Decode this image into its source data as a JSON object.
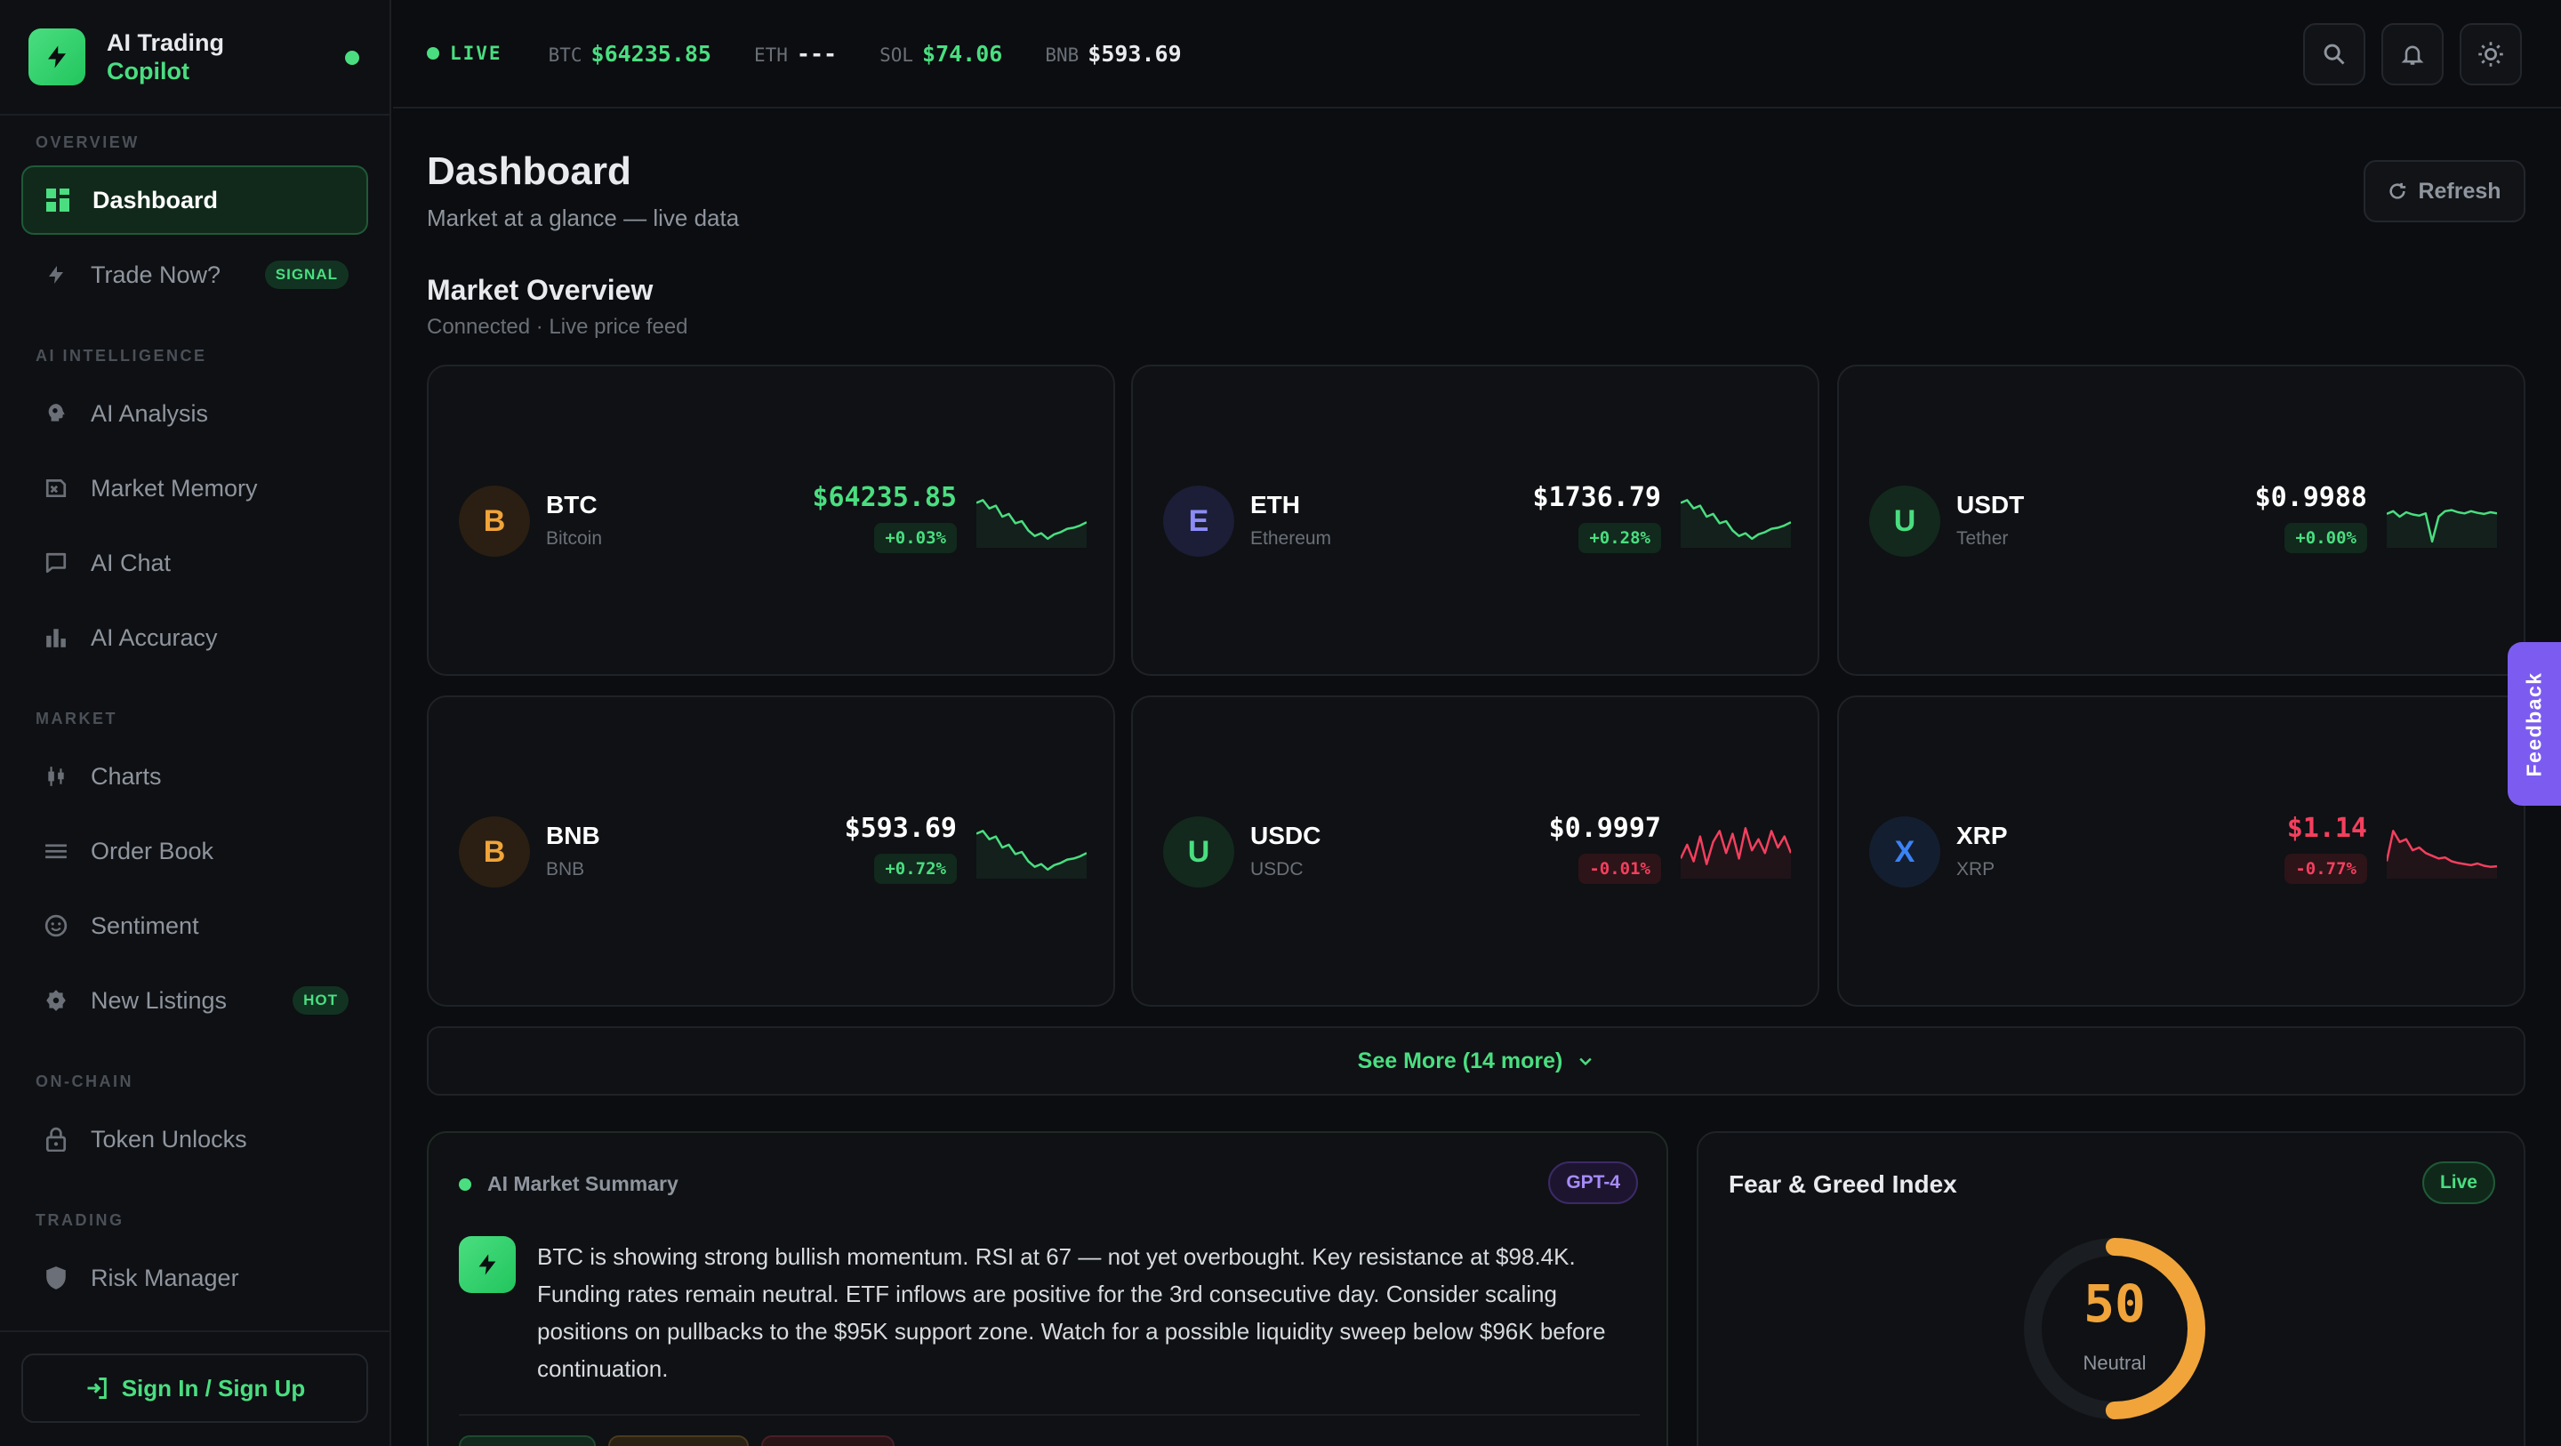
{
  "brand": {
    "line1": "AI Trading",
    "line2": "Copilot"
  },
  "sidebar": {
    "sections": {
      "overview": "OVERVIEW",
      "ai": "AI INTELLIGENCE",
      "market": "MARKET",
      "onchain": "ON-CHAIN",
      "trading": "TRADING"
    },
    "items": [
      {
        "label": "Dashboard",
        "icon": "grid-icon"
      },
      {
        "label": "Trade Now?",
        "icon": "lightning-icon",
        "badge": "SIGNAL"
      },
      {
        "label": "AI Analysis",
        "icon": "brain-icon"
      },
      {
        "label": "Market Memory",
        "icon": "history-icon"
      },
      {
        "label": "AI Chat",
        "icon": "chat-icon"
      },
      {
        "label": "AI Accuracy",
        "icon": "bar-chart-icon"
      },
      {
        "label": "Charts",
        "icon": "candlestick-icon"
      },
      {
        "label": "Order Book",
        "icon": "list-icon"
      },
      {
        "label": "Sentiment",
        "icon": "smiley-icon"
      },
      {
        "label": "New Listings",
        "icon": "badge-icon",
        "badge": "HOT"
      },
      {
        "label": "Token Unlocks",
        "icon": "lock-icon"
      },
      {
        "label": "Risk Manager",
        "icon": "shield-icon"
      }
    ],
    "signin": "Sign In / Sign Up"
  },
  "topbar": {
    "live": "LIVE",
    "tickers": [
      {
        "sym": "BTC",
        "price": "$64235.85",
        "color": "#4ade80"
      },
      {
        "sym": "ETH",
        "price": "---",
        "color": "#e8eaed"
      },
      {
        "sym": "SOL",
        "price": "$74.06",
        "color": "#4ade80"
      },
      {
        "sym": "BNB",
        "price": "$593.69",
        "color": "#e8eaed"
      }
    ]
  },
  "page": {
    "title": "Dashboard",
    "subtitle": "Market at a glance — live data",
    "refresh": "Refresh"
  },
  "market": {
    "title": "Market Overview",
    "subtitle": "Connected · Live price feed",
    "see_more": "See More (14 more)",
    "coins": [
      {
        "letter": "B",
        "sym": "BTC",
        "name": "Bitcoin",
        "price": "$64235.85",
        "change": "+0.03%",
        "dir": "up",
        "icon_color": "#f0a43a",
        "icon_bg": "#2a1f12"
      },
      {
        "letter": "E",
        "sym": "ETH",
        "name": "Ethereum",
        "price": "$1736.79",
        "change": "+0.28%",
        "dir": "up",
        "icon_color": "#8b8cf5",
        "icon_bg": "#1c1d36"
      },
      {
        "letter": "U",
        "sym": "USDT",
        "name": "Tether",
        "price": "$0.9988",
        "change": "+0.00%",
        "dir": "up",
        "icon_color": "#4ade80",
        "icon_bg": "#13291d"
      },
      {
        "letter": "B",
        "sym": "BNB",
        "name": "BNB",
        "price": "$593.69",
        "change": "+0.72%",
        "dir": "up",
        "icon_color": "#f0a43a",
        "icon_bg": "#2a1f12"
      },
      {
        "letter": "U",
        "sym": "USDC",
        "name": "USDC",
        "price": "$0.9997",
        "change": "-0.01%",
        "dir": "down",
        "icon_color": "#4ade80",
        "icon_bg": "#13291d"
      },
      {
        "letter": "X",
        "sym": "XRP",
        "name": "XRP",
        "price": "$1.14",
        "change": "-0.77%",
        "dir": "down",
        "icon_color": "#3b82f6",
        "icon_bg": "#131f30"
      }
    ]
  },
  "summary": {
    "title": "AI Market Summary",
    "model": "GPT-4",
    "text": "BTC is showing strong bullish momentum. RSI at 67 — not yet overbought. Key resistance at $98.4K. Funding rates remain neutral. ETF inflows are positive for the 3rd consecutive day. Consider scaling positions on pullbacks to the $95K support zone. Watch for a possible liquidity sweep below $96K before continuation."
  },
  "fear_greed": {
    "title": "Fear & Greed Index",
    "live": "Live",
    "value": "50",
    "label": "Neutral",
    "fraction": 0.5
  },
  "feedback": "Feedback"
}
